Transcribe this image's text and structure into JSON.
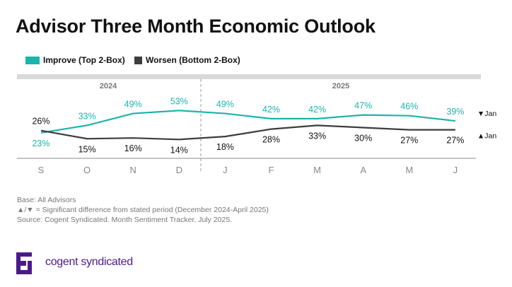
{
  "title": "Advisor Three Month Economic Outlook",
  "colors": {
    "improve": "#1ab5ad",
    "worsen": "#3d3d3d",
    "brand": "#4a1a8c",
    "band": "#d9d9d9"
  },
  "chart_data": {
    "type": "line",
    "categories": [
      "S",
      "O",
      "N",
      "D",
      "J",
      "F",
      "M",
      "A",
      "M",
      "J"
    ],
    "year_groups": [
      {
        "label": "2024",
        "months": [
          "S",
          "O",
          "N",
          "D"
        ]
      },
      {
        "label": "2025",
        "months": [
          "J",
          "F",
          "M",
          "A",
          "M",
          "J"
        ]
      }
    ],
    "series": [
      {
        "name": "Improve (Top 2-Box)",
        "values": [
          23,
          33,
          49,
          53,
          49,
          42,
          42,
          47,
          46,
          39
        ],
        "labels": [
          "23%",
          "33%",
          "49%",
          "53%",
          "49%",
          "42%",
          "42%",
          "47%",
          "46%",
          "39%"
        ],
        "end_annotation": "▼Jan"
      },
      {
        "name": "Worsen (Bottom 2-Box)",
        "values": [
          26,
          15,
          16,
          14,
          18,
          28,
          33,
          30,
          27,
          27
        ],
        "labels": [
          "26%",
          "15%",
          "16%",
          "14%",
          "18%",
          "28%",
          "33%",
          "30%",
          "27%",
          "27%"
        ],
        "end_annotation": "▲Jan"
      }
    ],
    "legend": "top-left",
    "grid": false
  },
  "footnotes": [
    "Base: All Advisors",
    "▲/▼ = Significant difference from stated period (December 2024-April 2025)",
    "Source: Cogent Syndicated. Month Sentiment Tracker. July 2025."
  ],
  "brand": "cogent syndicated"
}
